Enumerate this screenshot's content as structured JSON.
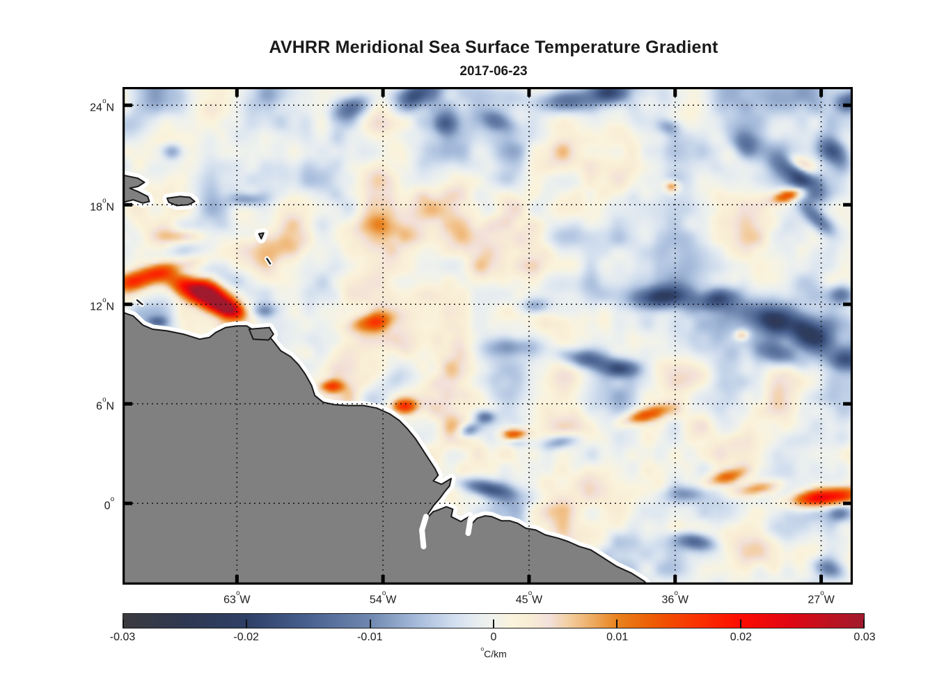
{
  "chart_data": {
    "type": "heatmap",
    "title": "AVHRR Meridional Sea Surface Temperature Gradient",
    "subtitle": "2017-06-23",
    "grid": "dotted",
    "x_axis": {
      "kind": "longitude",
      "range_deg_east": [
        -70.05,
        -25.05
      ],
      "ticks": [
        {
          "value": -63,
          "label": "63°W"
        },
        {
          "value": -54,
          "label": "54°W"
        },
        {
          "value": -45,
          "label": "45°W"
        },
        {
          "value": -36,
          "label": "36°W"
        },
        {
          "value": -27,
          "label": "27°W"
        }
      ]
    },
    "y_axis": {
      "kind": "latitude",
      "range_deg_north": [
        -4.9,
        25.1
      ],
      "ticks": [
        {
          "value": 24,
          "label": "24°N"
        },
        {
          "value": 18,
          "label": "18°N"
        },
        {
          "value": 12,
          "label": "12°N"
        },
        {
          "value": 6,
          "label": "6°N"
        },
        {
          "value": 0,
          "label": "0°"
        }
      ]
    },
    "colorbar": {
      "orientation": "horizontal",
      "unit": "°C/km",
      "range": [
        -0.03,
        0.03
      ],
      "tick_values": [
        -0.03,
        -0.02,
        -0.01,
        0,
        0.01,
        0.02,
        0.03
      ],
      "tick_labels": [
        "-0.03",
        "-0.02",
        "-0.01",
        "0",
        "0.01",
        "0.02",
        "0.03"
      ],
      "stops": [
        [
          -0.03,
          "#3b3b3e"
        ],
        [
          -0.025,
          "#2f3852"
        ],
        [
          -0.02,
          "#2e3f66"
        ],
        [
          -0.015,
          "#48618f"
        ],
        [
          -0.01,
          "#7088b0"
        ],
        [
          -0.006,
          "#a9bedd"
        ],
        [
          -0.003,
          "#d4e0ef"
        ],
        [
          -0.0015,
          "#e6ecf0"
        ],
        [
          0.0,
          "#f0f2ec"
        ],
        [
          0.0015,
          "#fbf3dc"
        ],
        [
          0.003,
          "#f8ecd4"
        ],
        [
          0.0045,
          "#f2e0da"
        ],
        [
          0.006,
          "#f3cfa4"
        ],
        [
          0.008,
          "#eeab62"
        ],
        [
          0.01,
          "#e8821d"
        ],
        [
          0.013,
          "#ee5a04"
        ],
        [
          0.016,
          "#f93701"
        ],
        [
          0.02,
          "#fc0d00"
        ],
        [
          0.024,
          "#e00613"
        ],
        [
          0.027,
          "#c01220"
        ],
        [
          0.03,
          "#a01a2e"
        ]
      ]
    },
    "map_style": {
      "land_fill": "#808080",
      "land_outline": "#191919",
      "coast_mask": "#ffffff",
      "sea_background_value": 0.0
    },
    "land": {
      "mainland": [
        [
          -70.6,
          11.55
        ],
        [
          -70.0,
          11.5
        ],
        [
          -69.4,
          11.3
        ],
        [
          -68.8,
          10.75
        ],
        [
          -68.2,
          10.5
        ],
        [
          -67.3,
          10.4
        ],
        [
          -66.3,
          10.2
        ],
        [
          -65.3,
          9.9
        ],
        [
          -64.7,
          10.0
        ],
        [
          -64.3,
          10.3
        ],
        [
          -63.7,
          10.6
        ],
        [
          -63.0,
          10.7
        ],
        [
          -62.4,
          10.7
        ],
        [
          -62.0,
          10.45
        ],
        [
          -61.6,
          10.2
        ],
        [
          -61.0,
          10.05
        ],
        [
          -60.7,
          9.7
        ],
        [
          -60.3,
          9.2
        ],
        [
          -59.7,
          8.85
        ],
        [
          -59.2,
          8.35
        ],
        [
          -58.8,
          7.8
        ],
        [
          -58.4,
          7.1
        ],
        [
          -58.2,
          6.5
        ],
        [
          -57.7,
          6.1
        ],
        [
          -57.0,
          5.95
        ],
        [
          -56.2,
          5.9
        ],
        [
          -55.2,
          5.9
        ],
        [
          -54.4,
          5.75
        ],
        [
          -53.6,
          5.4
        ],
        [
          -53.0,
          5.0
        ],
        [
          -52.5,
          4.5
        ],
        [
          -52.0,
          3.9
        ],
        [
          -51.6,
          3.3
        ],
        [
          -51.2,
          2.7
        ],
        [
          -50.8,
          2.1
        ],
        [
          -50.6,
          1.7
        ],
        [
          -50.9,
          1.35
        ],
        [
          -50.4,
          1.15
        ],
        [
          -49.8,
          1.5
        ],
        [
          -49.9,
          1.05
        ],
        [
          -50.2,
          0.7
        ],
        [
          -50.5,
          0.3
        ],
        [
          -50.9,
          -0.15
        ],
        [
          -51.2,
          -0.6
        ],
        [
          -51.5,
          -1.3
        ],
        [
          -51.3,
          -0.9
        ],
        [
          -50.9,
          -0.5
        ],
        [
          -50.6,
          -0.4
        ],
        [
          -50.1,
          -0.2
        ],
        [
          -49.7,
          -0.35
        ],
        [
          -49.8,
          -0.8
        ],
        [
          -49.2,
          -1.1
        ],
        [
          -48.7,
          -0.8
        ],
        [
          -48.5,
          -1.2
        ],
        [
          -48.2,
          -0.9
        ],
        [
          -47.7,
          -0.75
        ],
        [
          -47.3,
          -0.8
        ],
        [
          -46.7,
          -1.05
        ],
        [
          -46.2,
          -1.05
        ],
        [
          -45.7,
          -1.2
        ],
        [
          -45.2,
          -1.5
        ],
        [
          -44.6,
          -1.6
        ],
        [
          -44.0,
          -1.9
        ],
        [
          -43.2,
          -2.1
        ],
        [
          -42.6,
          -2.3
        ],
        [
          -41.9,
          -2.6
        ],
        [
          -41.2,
          -2.8
        ],
        [
          -40.4,
          -3.3
        ],
        [
          -39.6,
          -3.8
        ],
        [
          -38.7,
          -4.2
        ],
        [
          -37.9,
          -4.7
        ],
        [
          -37.2,
          -5.5
        ],
        [
          -70.6,
          -5.5
        ]
      ],
      "islands": [
        [
          [
            -70.6,
            19.9
          ],
          [
            -69.1,
            19.6
          ],
          [
            -68.7,
            19.35
          ],
          [
            -69.1,
            19.1
          ],
          [
            -69.6,
            19.0
          ],
          [
            -69.1,
            18.8
          ],
          [
            -68.5,
            18.5
          ],
          [
            -68.4,
            18.2
          ],
          [
            -68.8,
            18.1
          ],
          [
            -69.4,
            18.3
          ],
          [
            -70.6,
            18.0
          ]
        ],
        [
          [
            -67.3,
            18.4
          ],
          [
            -66.5,
            18.5
          ],
          [
            -65.9,
            18.45
          ],
          [
            -65.6,
            18.2
          ],
          [
            -66.0,
            18.0
          ],
          [
            -66.7,
            17.95
          ],
          [
            -67.2,
            18.15
          ]
        ],
        [
          [
            -62.25,
            10.5
          ],
          [
            -61.0,
            10.6
          ],
          [
            -60.75,
            10.2
          ],
          [
            -61.05,
            9.85
          ],
          [
            -62.0,
            9.9
          ]
        ],
        [
          [
            -61.65,
            16.25
          ],
          [
            -61.35,
            16.3
          ],
          [
            -61.5,
            15.95
          ]
        ]
      ],
      "islet_lines": [
        [
          [
            -61.15,
            14.75
          ],
          [
            -60.95,
            14.45
          ]
        ],
        [
          [
            -69.15,
            12.25
          ],
          [
            -68.85,
            12.0
          ]
        ]
      ],
      "river_channels": [
        [
          [
            -51.35,
            -0.8
          ],
          [
            -51.6,
            -1.6
          ],
          [
            -51.5,
            -2.6
          ]
        ],
        [
          [
            -48.6,
            -0.9
          ],
          [
            -48.75,
            -1.8
          ]
        ]
      ]
    },
    "features": [
      [
        -60.0,
        15.5,
        6.0,
        2.5,
        0,
        0.0028
      ],
      [
        -30.0,
        11.5,
        6.0,
        3.5,
        0,
        -0.0028
      ],
      [
        -46.0,
        22.5,
        8.0,
        2.5,
        0,
        -0.0015
      ],
      [
        -30.0,
        -3.0,
        3.0,
        1.0,
        10,
        0.006
      ],
      [
        -35.5,
        -1.5,
        2.0,
        0.6,
        0,
        0.005
      ],
      [
        -62.0,
        15.3,
        3.0,
        0.9,
        5,
        0.005
      ],
      [
        -53.0,
        16.5,
        3.0,
        1.0,
        0,
        0.004
      ],
      [
        -55.9,
        23.9,
        1.3,
        0.7,
        20,
        -0.013
      ],
      [
        -52.0,
        24.6,
        1.2,
        0.7,
        30,
        -0.015
      ],
      [
        -50.2,
        22.9,
        0.7,
        0.6,
        0,
        -0.01
      ],
      [
        -46.8,
        23.0,
        1.2,
        0.6,
        -20,
        -0.011
      ],
      [
        -42.5,
        24.3,
        2.2,
        0.7,
        5,
        -0.014
      ],
      [
        -40.0,
        24.8,
        1.2,
        0.6,
        0,
        -0.013
      ],
      [
        -36.3,
        22.7,
        0.7,
        0.5,
        0,
        -0.009
      ],
      [
        -31.6,
        21.6,
        1.2,
        0.8,
        -30,
        -0.012
      ],
      [
        -28.3,
        19.6,
        2.0,
        0.8,
        -40,
        -0.016
      ],
      [
        -26.3,
        21.2,
        1.1,
        0.7,
        -40,
        -0.014
      ],
      [
        -25.3,
        24.2,
        0.9,
        0.6,
        0,
        -0.012
      ],
      [
        -27.3,
        17.2,
        1.3,
        0.5,
        -45,
        -0.012
      ],
      [
        -66.9,
        21.2,
        0.7,
        0.5,
        0,
        -0.009
      ],
      [
        -62.4,
        18.3,
        1.1,
        0.4,
        0,
        -0.009
      ],
      [
        -61.3,
        11.6,
        0.7,
        0.45,
        0,
        -0.01
      ],
      [
        -67.9,
        10.95,
        0.6,
        0.3,
        0,
        -0.009
      ],
      [
        -36.9,
        12.4,
        1.7,
        0.65,
        5,
        -0.015
      ],
      [
        -33.4,
        12.3,
        1.5,
        0.6,
        10,
        -0.014
      ],
      [
        -30.1,
        11.1,
        1.7,
        0.85,
        -20,
        -0.016
      ],
      [
        -27.4,
        10.1,
        1.7,
        0.95,
        -35,
        -0.017
      ],
      [
        -29.6,
        9.0,
        1.4,
        0.7,
        -20,
        -0.013
      ],
      [
        -25.9,
        12.6,
        0.9,
        0.6,
        0,
        -0.013
      ],
      [
        -25.5,
        8.6,
        1.0,
        0.6,
        0,
        -0.011
      ],
      [
        -44.6,
        11.9,
        0.9,
        0.5,
        0,
        -0.009
      ],
      [
        -41.6,
        8.7,
        1.7,
        0.55,
        -10,
        -0.014
      ],
      [
        -39.4,
        8.1,
        1.3,
        0.5,
        0,
        -0.011
      ],
      [
        -46.1,
        9.4,
        1.5,
        0.6,
        0,
        -0.008
      ],
      [
        -47.7,
        5.2,
        0.6,
        0.4,
        0,
        -0.012
      ],
      [
        -48.7,
        4.4,
        0.7,
        0.4,
        20,
        -0.012
      ],
      [
        -45.8,
        3.8,
        0.8,
        0.35,
        0,
        -0.01
      ],
      [
        -43.1,
        3.7,
        1.1,
        0.4,
        10,
        -0.009
      ],
      [
        -47.6,
        0.9,
        1.8,
        0.5,
        -12,
        -0.016
      ],
      [
        -35.4,
        0.6,
        1.1,
        0.5,
        0,
        -0.008
      ],
      [
        -34.7,
        -2.3,
        1.2,
        0.5,
        -10,
        -0.013
      ],
      [
        -25.9,
        -0.6,
        0.8,
        0.5,
        0,
        -0.01
      ],
      [
        -26.6,
        -3.9,
        1.1,
        0.6,
        -20,
        -0.011
      ],
      [
        -64.6,
        12.5,
        1.5,
        0.75,
        -25,
        0.026
      ],
      [
        -65.9,
        13.0,
        1.6,
        0.65,
        -20,
        0.016
      ],
      [
        -63.6,
        11.75,
        0.9,
        0.45,
        -20,
        0.024
      ],
      [
        -69.3,
        13.4,
        1.2,
        0.55,
        10,
        0.015
      ],
      [
        -67.9,
        13.9,
        1.0,
        0.5,
        0,
        0.01
      ],
      [
        -66.3,
        14.4,
        1.6,
        0.5,
        10,
        0.009
      ],
      [
        -66.2,
        16.1,
        1.3,
        0.45,
        0,
        0.008
      ],
      [
        -54.7,
        10.9,
        1.3,
        0.55,
        10,
        0.013
      ],
      [
        -57.2,
        7.05,
        0.7,
        0.35,
        0,
        0.012
      ],
      [
        -52.7,
        5.85,
        0.8,
        0.45,
        0,
        0.015
      ],
      [
        -45.9,
        4.1,
        0.8,
        0.4,
        0,
        0.019
      ],
      [
        -37.9,
        5.3,
        1.5,
        0.45,
        15,
        0.014
      ],
      [
        -26.9,
        0.35,
        2.0,
        0.55,
        6,
        0.026
      ],
      [
        -30.8,
        0.9,
        1.8,
        0.45,
        10,
        0.011
      ],
      [
        -32.8,
        1.6,
        1.3,
        0.45,
        15,
        0.012
      ],
      [
        -28.9,
        18.6,
        1.1,
        0.4,
        15,
        0.017
      ],
      [
        -28.2,
        20.4,
        0.9,
        0.45,
        -30,
        0.014
      ],
      [
        -36.2,
        19.1,
        0.45,
        0.35,
        0,
        0.013
      ],
      [
        -31.9,
        10.15,
        0.4,
        0.3,
        0,
        0.011
      ]
    ],
    "texture": {
      "seed": 7,
      "octaves": [
        {
          "freq": 0.28,
          "amp": 0.0052
        },
        {
          "freq": 0.6,
          "amp": 0.0034
        },
        {
          "freq": 1.15,
          "amp": 0.0016
        }
      ]
    }
  }
}
